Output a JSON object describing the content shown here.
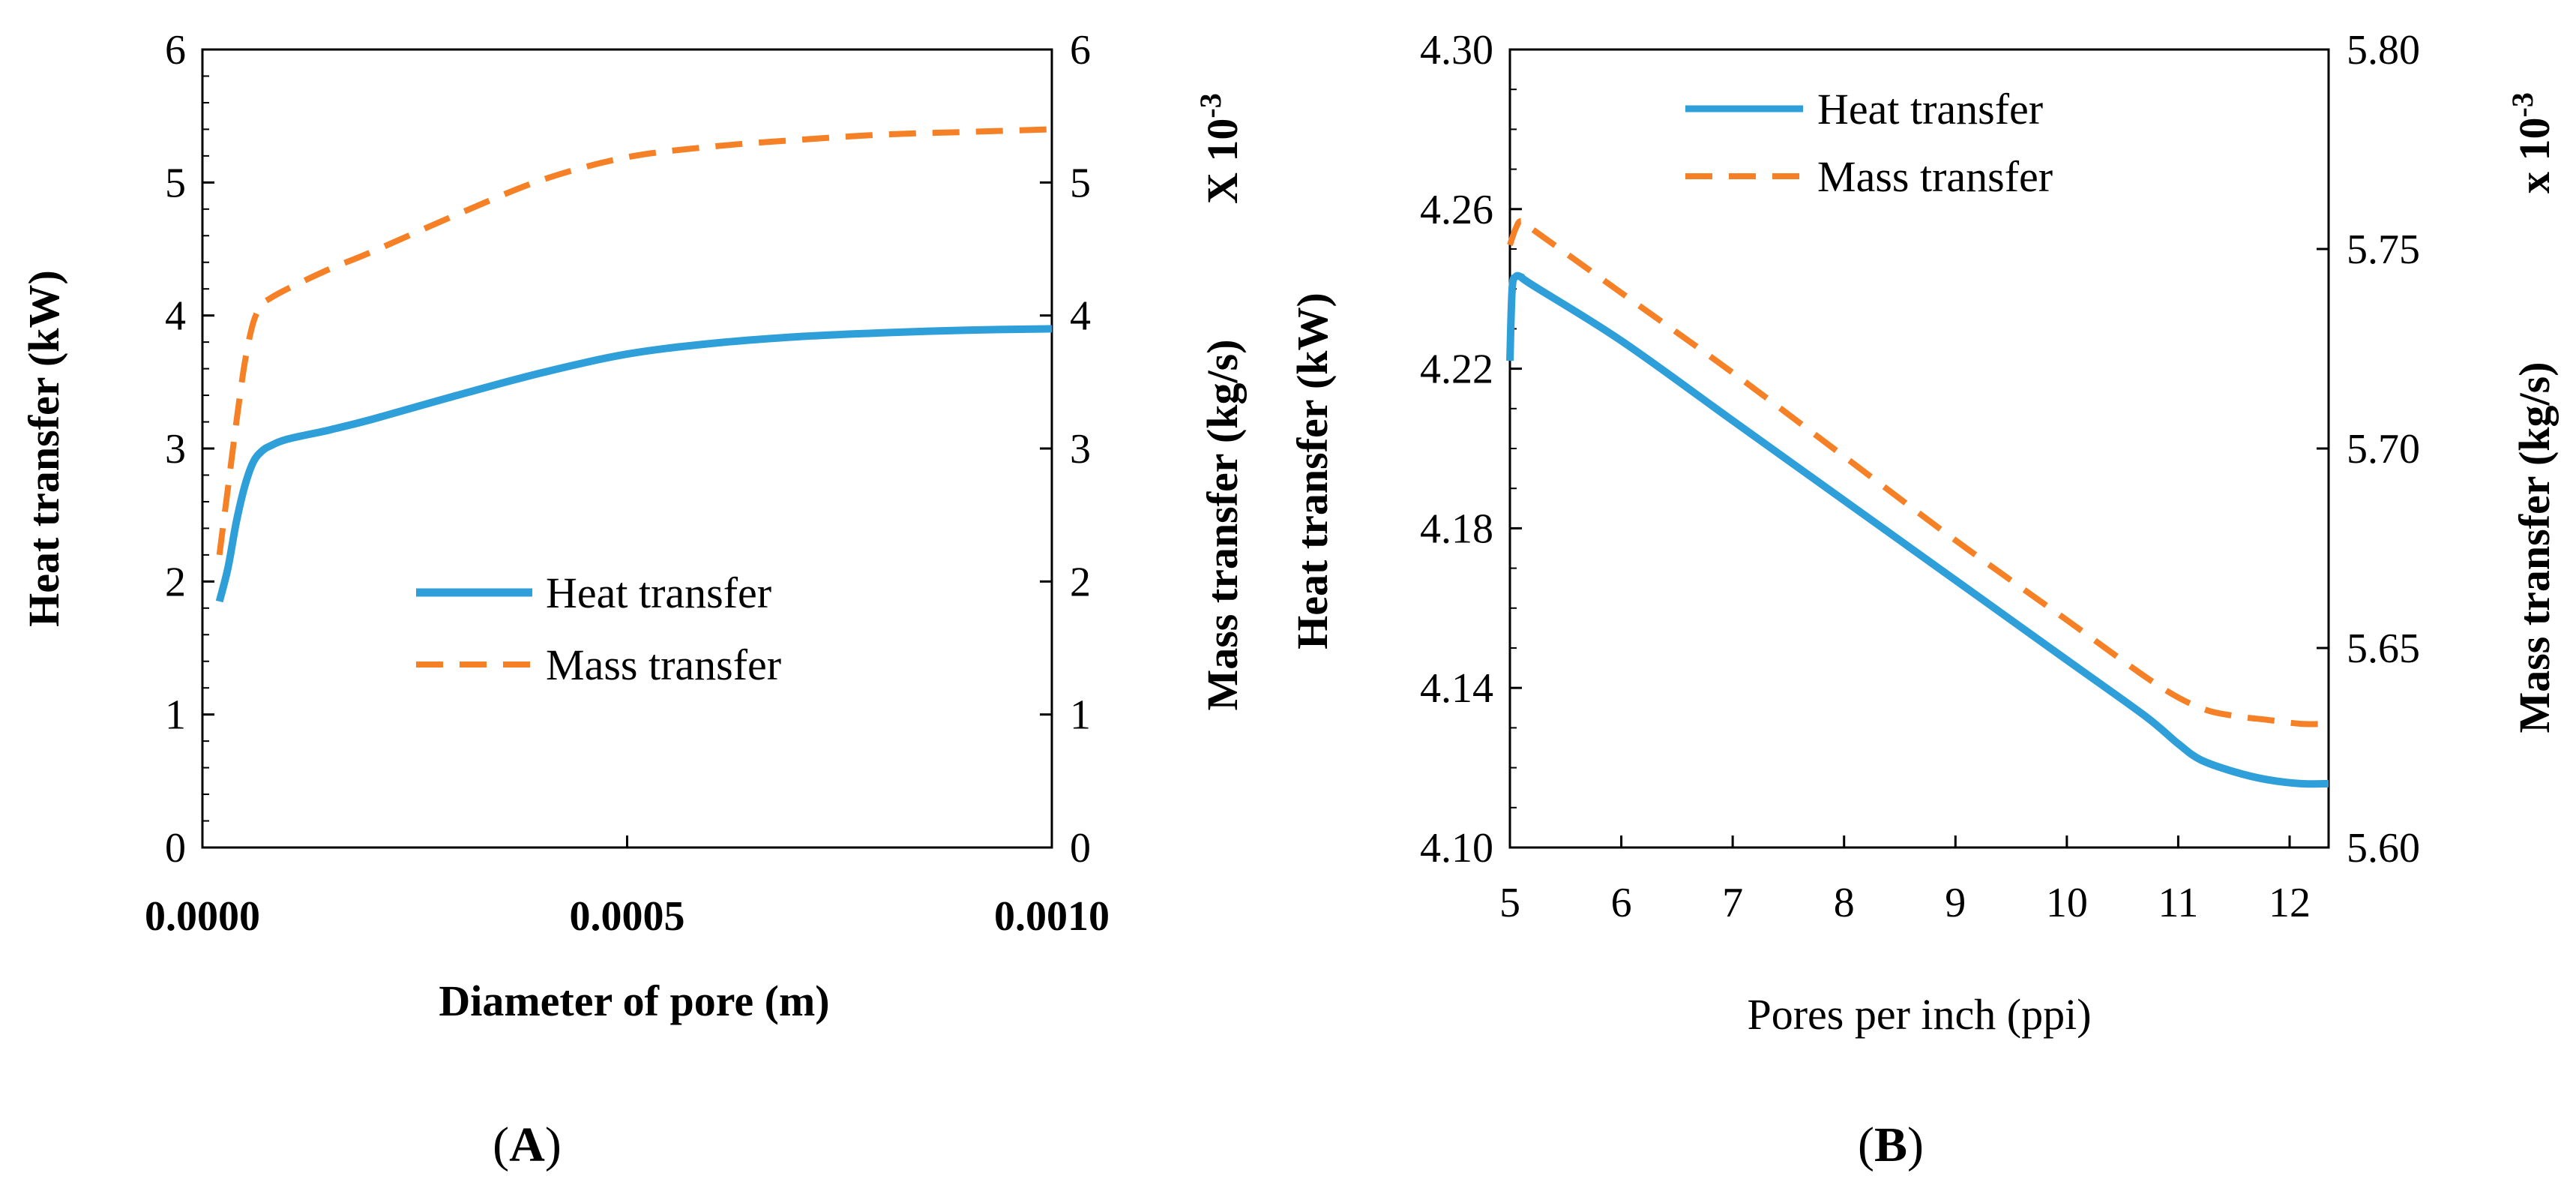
{
  "chart_data": [
    {
      "panel_label": "A",
      "type": "line",
      "xlabel": "Diameter of pore (m)",
      "ylabel": "Heat transfer (kW)",
      "y2label": "Mass transfer (kg/s)",
      "y2_multiplier": "X 10",
      "y2_exponent": "-3",
      "xlim": [
        0.0,
        0.001
      ],
      "ylim": [
        0,
        6
      ],
      "y2lim": [
        0,
        6
      ],
      "x_ticks": [
        "0.0000",
        "0.0005",
        "0.0010"
      ],
      "y_ticks": [
        "0",
        "1",
        "2",
        "3",
        "4",
        "5",
        "6"
      ],
      "y2_ticks": [
        "0",
        "1",
        "2",
        "3",
        "4",
        "5",
        "6"
      ],
      "legend_position": "center",
      "series": [
        {
          "name": "Heat transfer",
          "axis": "left",
          "color": "#2E9FD8",
          "style": "solid",
          "x": [
            2e-05,
            3e-05,
            4e-05,
            5e-05,
            6e-05,
            7e-05,
            8e-05,
            0.0001,
            0.00015,
            0.0002,
            0.0003,
            0.0004,
            0.0005,
            0.0006,
            0.0007,
            0.0008,
            0.0009,
            0.001
          ],
          "values": [
            1.85,
            2.1,
            2.45,
            2.72,
            2.9,
            2.98,
            3.02,
            3.07,
            3.14,
            3.22,
            3.4,
            3.57,
            3.71,
            3.79,
            3.84,
            3.87,
            3.89,
            3.9
          ]
        },
        {
          "name": "Mass transfer",
          "axis": "right",
          "color": "#F58025",
          "style": "dashed",
          "x": [
            2e-05,
            3e-05,
            4e-05,
            5e-05,
            6e-05,
            7e-05,
            8e-05,
            0.0001,
            0.00015,
            0.0002,
            0.0003,
            0.0004,
            0.0005,
            0.0006,
            0.0007,
            0.0008,
            0.0009,
            0.001
          ],
          "values": [
            2.2,
            2.7,
            3.2,
            3.65,
            3.95,
            4.08,
            4.13,
            4.2,
            4.35,
            4.48,
            4.76,
            5.02,
            5.19,
            5.27,
            5.32,
            5.36,
            5.38,
            5.4
          ]
        }
      ]
    },
    {
      "panel_label": "B",
      "type": "line",
      "xlabel": "Pores per inch  (ppi)",
      "ylabel": "Heat transfer (kW)",
      "y2label": "Mass transfer (kg/s)",
      "y2_multiplier": "x 10",
      "y2_exponent": "-3",
      "xlim": [
        5,
        12.35
      ],
      "ylim": [
        4.1,
        4.3
      ],
      "y2lim": [
        5.6,
        5.8
      ],
      "x_ticks": [
        "5",
        "6",
        "7",
        "8",
        "9",
        "10",
        "11",
        "12"
      ],
      "y_ticks": [
        "4.10",
        "4.14",
        "4.18",
        "4.22",
        "4.26",
        "4.30"
      ],
      "y2_ticks": [
        "5.60",
        "5.65",
        "5.70",
        "5.75",
        "5.80"
      ],
      "legend_position": "top-left",
      "series": [
        {
          "name": "Heat transfer",
          "axis": "left",
          "color": "#2E9FD8",
          "style": "solid",
          "x": [
            5.0,
            5.02,
            5.05,
            5.1,
            5.2,
            6,
            7,
            8,
            9,
            10,
            10.7,
            11.0,
            11.2,
            11.5,
            11.8,
            12.1,
            12.35
          ],
          "values": [
            4.222,
            4.24,
            4.243,
            4.243,
            4.241,
            4.227,
            4.207,
            4.187,
            4.167,
            4.147,
            4.133,
            4.126,
            4.122,
            4.119,
            4.117,
            4.116,
            4.116
          ],
          "shown_from_x": 5.0
        },
        {
          "name": "Mass transfer",
          "axis": "right",
          "color": "#F58025",
          "style": "dashed",
          "x": [
            5.0,
            5.05,
            5.1,
            5.2,
            6,
            7,
            8,
            9,
            10,
            10.8,
            11.2,
            11.5,
            11.8,
            12.1,
            12.35
          ],
          "values": [
            5.751,
            5.755,
            5.757,
            5.755,
            5.739,
            5.719,
            5.698,
            5.677,
            5.657,
            5.641,
            5.635,
            5.633,
            5.632,
            5.631,
            5.631
          ]
        }
      ]
    }
  ]
}
